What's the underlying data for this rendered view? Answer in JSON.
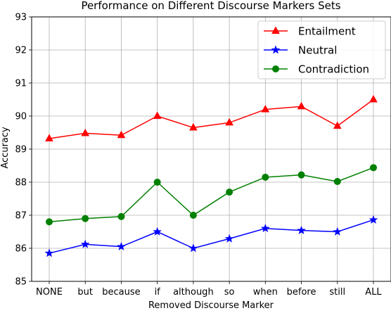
{
  "chart_data": {
    "type": "line",
    "title": "Performance on Different Discourse Markers Sets",
    "xlabel": "Removed Discourse Marker",
    "ylabel": "Accuracy",
    "categories": [
      "NONE",
      "but",
      "because",
      "if",
      "although",
      "so",
      "when",
      "before",
      "still",
      "ALL"
    ],
    "ylim": [
      85,
      93
    ],
    "yticks": [
      85,
      86,
      87,
      88,
      89,
      90,
      91,
      92,
      93
    ],
    "grid": true,
    "legend_position": "top-right",
    "series": [
      {
        "name": "Entailment",
        "color": "#ff0000",
        "marker": "triangle",
        "values": [
          89.32,
          89.48,
          89.42,
          90.0,
          89.65,
          89.8,
          90.2,
          90.29,
          89.7,
          90.5
        ]
      },
      {
        "name": "Neutral",
        "color": "#0000ff",
        "marker": "star",
        "values": [
          85.85,
          86.12,
          86.05,
          86.5,
          86.0,
          86.29,
          86.6,
          86.54,
          86.5,
          86.86
        ]
      },
      {
        "name": "Contradiction",
        "color": "#008000",
        "marker": "circle",
        "values": [
          86.8,
          86.9,
          86.96,
          88.0,
          87.0,
          87.7,
          88.15,
          88.22,
          88.02,
          88.44
        ]
      }
    ]
  }
}
